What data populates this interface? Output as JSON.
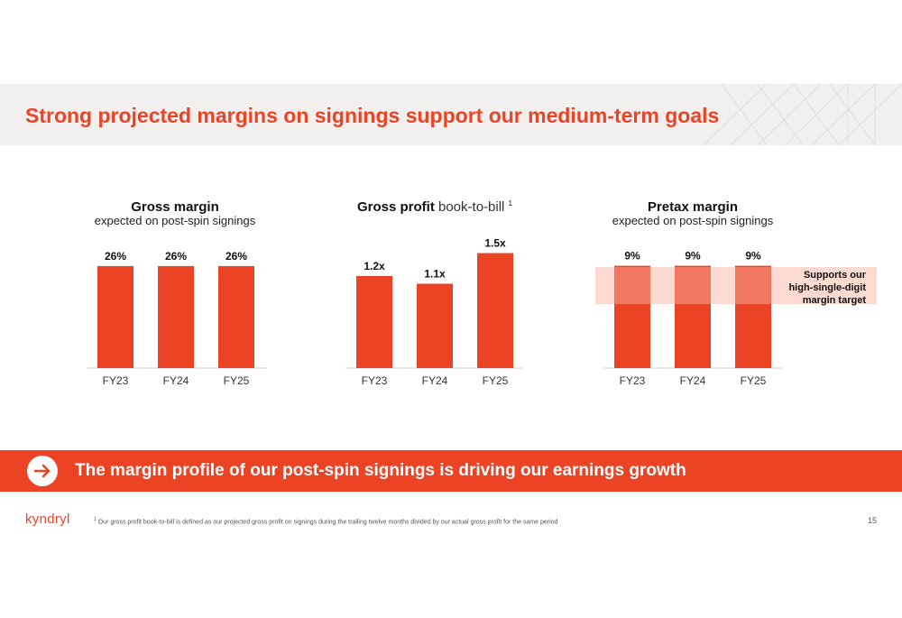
{
  "slide": {
    "title": "Strong projected margins on signings support our medium-term goals",
    "callout": "The margin profile of our post-spin signings is driving our earnings growth",
    "logo": "kyndryl",
    "footnote_marker": "1",
    "footnote": "Our gross profit book-to-bill is defined as our projected gross profit on signings during the trailing twelve months divided by our actual gross profit for the same period",
    "page_number": "15",
    "target_note": "Supports our high-single-digit margin target"
  },
  "colors": {
    "accent": "#ec4325",
    "target_band": "#fcd9d1",
    "header_band": "#f1f0ee"
  },
  "chart_data": [
    {
      "type": "bar",
      "title": "Gross margin",
      "subtitle": "expected on post-spin signings",
      "categories": [
        "FY23",
        "FY24",
        "FY25"
      ],
      "values": [
        26,
        26,
        26
      ],
      "labels": [
        "26%",
        "26%",
        "26%"
      ],
      "unit": "%"
    },
    {
      "type": "bar",
      "title": "Gross profit",
      "title_light": "book-to-bill",
      "title_footnote": "1",
      "categories": [
        "FY23",
        "FY24",
        "FY25"
      ],
      "values": [
        1.2,
        1.1,
        1.5
      ],
      "labels": [
        "1.2x",
        "1.1x",
        "1.5x"
      ],
      "unit": "x"
    },
    {
      "type": "bar",
      "title": "Pretax margin",
      "subtitle": "expected on post-spin signings",
      "categories": [
        "FY23",
        "FY24",
        "FY25"
      ],
      "values": [
        9,
        9,
        9
      ],
      "labels": [
        "9%",
        "9%",
        "9%"
      ],
      "unit": "%",
      "annotation": "Supports our high-single-digit margin target"
    }
  ]
}
